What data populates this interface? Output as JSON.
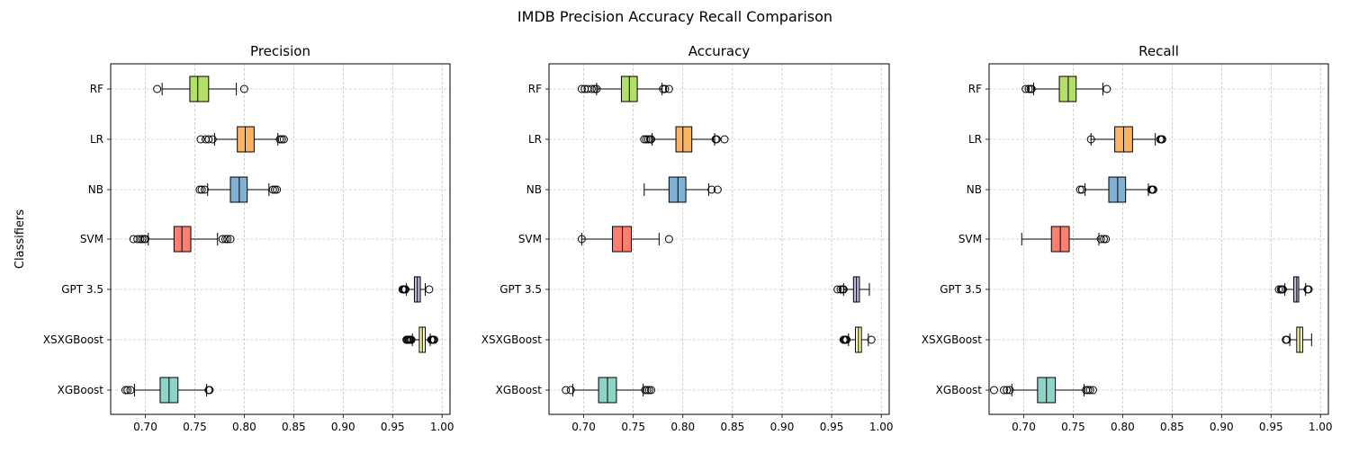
{
  "suptitle": "IMDB Precision Accuracy Recall Comparison",
  "ylabel": "Classifiers",
  "chart_data": [
    {
      "type": "boxplot",
      "title": "Precision",
      "xlim": [
        0.665,
        1.008
      ],
      "xticks": [
        "0.70",
        "0.75",
        "0.80",
        "0.85",
        "0.90",
        "0.95",
        "1.00"
      ],
      "grid": true,
      "categories": [
        "RF",
        "LR",
        "NB",
        "SVM",
        "GPT 3.5",
        "XSXGBoost",
        "XGBoost"
      ],
      "colors": [
        "#b3de69",
        "#fdb462",
        "#80b1d3",
        "#fb8072",
        "#bebada",
        "#ffffb3",
        "#8dd3c7"
      ],
      "boxes": [
        {
          "q1": 0.745,
          "median": 0.753,
          "q3": 0.764,
          "whislo": 0.717,
          "whishi": 0.792,
          "fliers": [
            0.712,
            0.8
          ]
        },
        {
          "q1": 0.793,
          "median": 0.801,
          "q3": 0.81,
          "whislo": 0.77,
          "whishi": 0.834,
          "fliers": [
            0.756,
            0.761,
            0.764,
            0.768,
            0.836,
            0.838,
            0.84
          ]
        },
        {
          "q1": 0.786,
          "median": 0.795,
          "q3": 0.803,
          "whislo": 0.763,
          "whishi": 0.825,
          "fliers": [
            0.755,
            0.757,
            0.76,
            0.829,
            0.831,
            0.833
          ]
        },
        {
          "q1": 0.729,
          "median": 0.737,
          "q3": 0.746,
          "whislo": 0.703,
          "whishi": 0.773,
          "fliers": [
            0.688,
            0.692,
            0.695,
            0.697,
            0.699,
            0.7,
            0.778,
            0.781,
            0.783,
            0.786
          ]
        },
        {
          "q1": 0.972,
          "median": 0.975,
          "q3": 0.978,
          "whislo": 0.964,
          "whishi": 0.983,
          "fliers": [
            0.96,
            0.961,
            0.962,
            0.963,
            0.987
          ]
        },
        {
          "q1": 0.977,
          "median": 0.98,
          "q3": 0.983,
          "whislo": 0.97,
          "whishi": 0.988,
          "fliers": [
            0.964,
            0.965,
            0.966,
            0.967,
            0.968,
            0.969,
            0.989,
            0.99,
            0.991,
            0.992
          ]
        },
        {
          "q1": 0.715,
          "median": 0.724,
          "q3": 0.733,
          "whislo": 0.689,
          "whishi": 0.762,
          "fliers": [
            0.68,
            0.682,
            0.685,
            0.764,
            0.765
          ]
        }
      ]
    },
    {
      "type": "boxplot",
      "title": "Accuracy",
      "xlim": [
        0.665,
        1.008
      ],
      "xticks": [
        "0.70",
        "0.75",
        "0.80",
        "0.85",
        "0.90",
        "0.95",
        "1.00"
      ],
      "grid": true,
      "categories": [
        "RF",
        "LR",
        "NB",
        "SVM",
        "GPT 3.5",
        "XSXGBoost",
        "XGBoost"
      ],
      "colors": [
        "#b3de69",
        "#fdb462",
        "#80b1d3",
        "#fb8072",
        "#bebada",
        "#ffffb3",
        "#8dd3c7"
      ],
      "boxes": [
        {
          "q1": 0.738,
          "median": 0.746,
          "q3": 0.754,
          "whislo": 0.713,
          "whishi": 0.779,
          "fliers": [
            0.698,
            0.701,
            0.704,
            0.708,
            0.711,
            0.713,
            0.78,
            0.782,
            0.786
          ]
        },
        {
          "q1": 0.793,
          "median": 0.8,
          "q3": 0.809,
          "whislo": 0.769,
          "whishi": 0.832,
          "fliers": [
            0.761,
            0.763,
            0.765,
            0.767,
            0.768,
            0.833,
            0.834,
            0.842
          ]
        },
        {
          "q1": 0.786,
          "median": 0.795,
          "q3": 0.803,
          "whislo": 0.761,
          "whishi": 0.826,
          "fliers": [
            0.829,
            0.835
          ]
        },
        {
          "q1": 0.729,
          "median": 0.739,
          "q3": 0.748,
          "whislo": 0.698,
          "whishi": 0.776,
          "fliers": [
            0.698,
            0.786
          ]
        },
        {
          "q1": 0.972,
          "median": 0.975,
          "q3": 0.978,
          "whislo": 0.962,
          "whishi": 0.988,
          "fliers": [
            0.956,
            0.959,
            0.961,
            0.962
          ]
        },
        {
          "q1": 0.974,
          "median": 0.977,
          "q3": 0.98,
          "whislo": 0.967,
          "whishi": 0.987,
          "fliers": [
            0.962,
            0.963,
            0.964,
            0.965,
            0.99
          ]
        },
        {
          "q1": 0.715,
          "median": 0.724,
          "q3": 0.733,
          "whislo": 0.689,
          "whishi": 0.76,
          "fliers": [
            0.682,
            0.687,
            0.762,
            0.764,
            0.766,
            0.768
          ]
        }
      ]
    },
    {
      "type": "boxplot",
      "title": "Recall",
      "xlim": [
        0.665,
        1.008
      ],
      "xticks": [
        "0.70",
        "0.75",
        "0.80",
        "0.85",
        "0.90",
        "0.95",
        "1.00"
      ],
      "grid": true,
      "categories": [
        "RF",
        "LR",
        "NB",
        "SVM",
        "GPT 3.5",
        "XSXGBoost",
        "XGBoost"
      ],
      "colors": [
        "#b3de69",
        "#fdb462",
        "#80b1d3",
        "#fb8072",
        "#bebada",
        "#ffffb3",
        "#8dd3c7"
      ],
      "boxes": [
        {
          "q1": 0.736,
          "median": 0.745,
          "q3": 0.753,
          "whislo": 0.71,
          "whishi": 0.78,
          "fliers": [
            0.702,
            0.705,
            0.707,
            0.708,
            0.784
          ]
        },
        {
          "q1": 0.792,
          "median": 0.801,
          "q3": 0.81,
          "whislo": 0.768,
          "whishi": 0.833,
          "fliers": [
            0.768,
            0.838,
            0.839,
            0.84
          ]
        },
        {
          "q1": 0.786,
          "median": 0.795,
          "q3": 0.803,
          "whislo": 0.762,
          "whishi": 0.826,
          "fliers": [
            0.757,
            0.759,
            0.829,
            0.83,
            0.831
          ]
        },
        {
          "q1": 0.728,
          "median": 0.737,
          "q3": 0.746,
          "whislo": 0.698,
          "whishi": 0.776,
          "fliers": [
            0.778,
            0.781,
            0.783
          ]
        },
        {
          "q1": 0.973,
          "median": 0.976,
          "q3": 0.978,
          "whislo": 0.964,
          "whishi": 0.985,
          "fliers": [
            0.958,
            0.96,
            0.961,
            0.962,
            0.987,
            0.988
          ]
        },
        {
          "q1": 0.976,
          "median": 0.979,
          "q3": 0.982,
          "whislo": 0.969,
          "whishi": 0.991,
          "fliers": [
            0.965,
            0.966
          ]
        },
        {
          "q1": 0.714,
          "median": 0.723,
          "q3": 0.732,
          "whislo": 0.688,
          "whishi": 0.761,
          "fliers": [
            0.67,
            0.68,
            0.683,
            0.686,
            0.763,
            0.765,
            0.767,
            0.77
          ]
        }
      ]
    }
  ]
}
